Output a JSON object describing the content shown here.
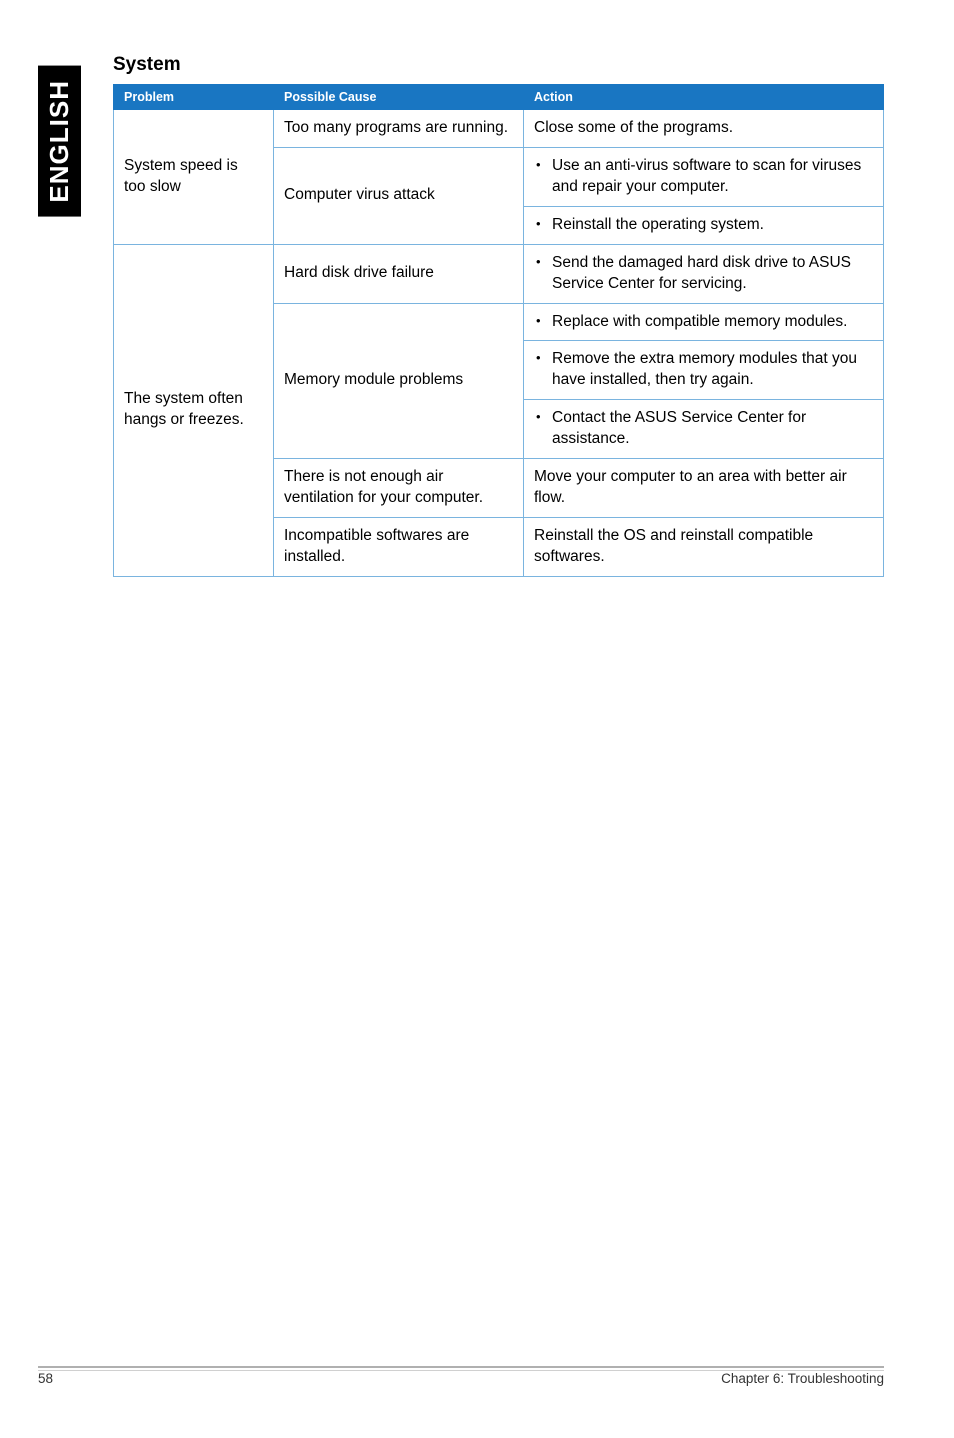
{
  "sidebar": {
    "label": "ENGLISH"
  },
  "section": {
    "title": "System"
  },
  "table": {
    "headers": {
      "problem": "Problem",
      "cause": "Possible Cause",
      "action": "Action"
    },
    "groups": [
      {
        "problem": "System speed is too slow",
        "rows": [
          {
            "cause": "Too many programs are running.",
            "action_text": "Close some of the programs."
          },
          {
            "cause": "Computer virus attack",
            "actions": [
              "Use an anti-virus software to scan for viruses and repair your computer.",
              "Reinstall the operating system."
            ]
          }
        ]
      },
      {
        "problem": "The system often hangs or freezes.",
        "rows": [
          {
            "cause": "Hard disk drive failure",
            "actions": [
              "Send the damaged hard disk drive to ASUS Service Center for servicing."
            ]
          },
          {
            "cause": "Memory module problems",
            "actions": [
              "Replace with compatible memory modules.",
              "Remove the extra memory modules that you have installed, then try again.",
              "Contact the ASUS Service Center for assistance."
            ]
          },
          {
            "cause": "There is not enough air ventilation for your computer.",
            "action_text": "Move your computer to an area with better air flow."
          },
          {
            "cause": "Incompatible softwares are installed.",
            "action_text": "Reinstall the OS and reinstall compatible softwares."
          }
        ]
      }
    ]
  },
  "footer": {
    "page": "58",
    "chapter": "Chapter 6: Troubleshooting"
  }
}
